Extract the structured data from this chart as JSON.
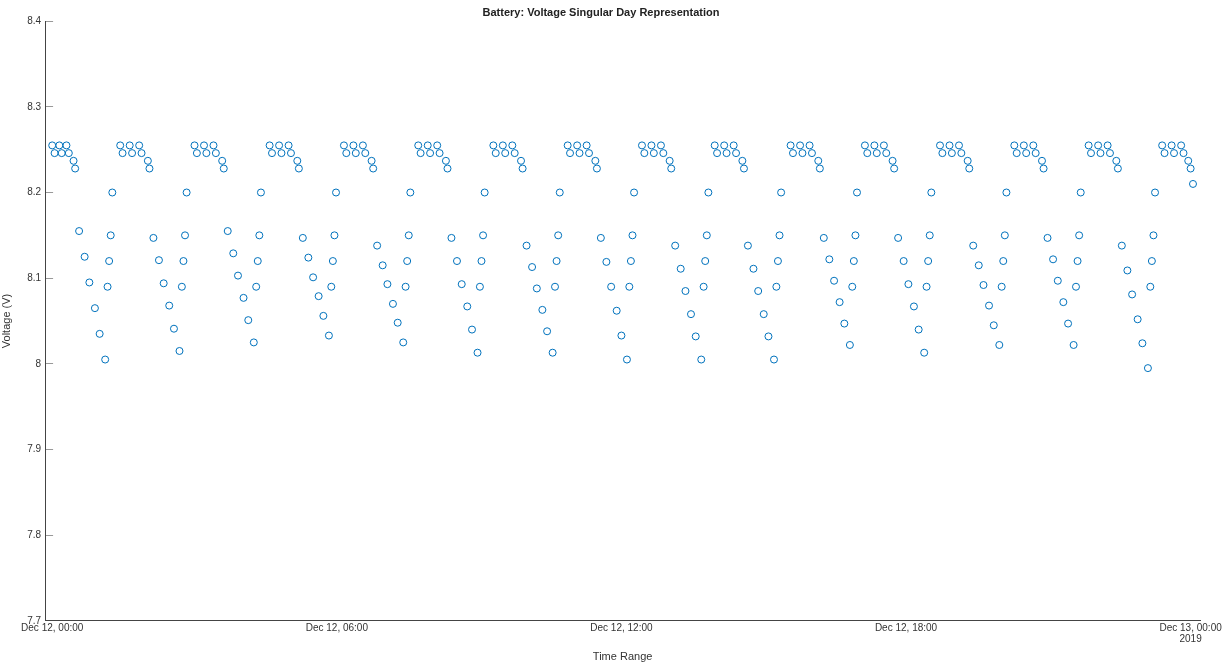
{
  "chart_data": {
    "type": "scatter",
    "title": "Battery: Voltage Singular Day Representation",
    "xlabel": "Time Range",
    "ylabel": "Voltage (V)",
    "color": "#0072bd",
    "marker": "circle",
    "grid": false,
    "xlim": [
      "2019-12-11T23:51",
      "2019-12-13T00:12"
    ],
    "xticks": [
      {
        "value": "2019-12-12T00:00",
        "label": "Dec 12, 00:00"
      },
      {
        "value": "2019-12-12T06:00",
        "label": "Dec 12, 06:00"
      },
      {
        "value": "2019-12-12T12:00",
        "label": "Dec 12, 12:00"
      },
      {
        "value": "2019-12-12T18:00",
        "label": "Dec 12, 18:00"
      },
      {
        "value": "2019-12-13T00:00",
        "label": "Dec 13, 00:00\n2019"
      }
    ],
    "ylim": [
      7.7,
      8.4
    ],
    "yticks": [
      7.7,
      7.8,
      7.9,
      8,
      8.1,
      8.2,
      8.3,
      8.4
    ],
    "x": [
      "2019-12-12T00:00",
      "2019-12-12T00:03",
      "2019-12-12T00:09",
      "2019-12-12T00:12",
      "2019-12-12T00:18",
      "2019-12-12T00:21",
      "2019-12-12T00:27",
      "2019-12-12T00:29",
      "2019-12-12T00:34",
      "2019-12-12T00:41",
      "2019-12-12T00:47",
      "2019-12-12T00:54",
      "2019-12-12T01:00",
      "2019-12-12T01:07",
      "2019-12-12T01:10",
      "2019-12-12T01:12",
      "2019-12-12T01:14",
      "2019-12-12T01:16",
      "2019-12-12T01:26",
      "2019-12-12T01:29",
      "2019-12-12T01:38",
      "2019-12-12T01:41",
      "2019-12-12T01:50",
      "2019-12-12T01:53",
      "2019-12-12T02:01",
      "2019-12-12T02:03",
      "2019-12-12T02:08",
      "2019-12-12T02:15",
      "2019-12-12T02:21",
      "2019-12-12T02:28",
      "2019-12-12T02:34",
      "2019-12-12T02:41",
      "2019-12-12T02:44",
      "2019-12-12T02:46",
      "2019-12-12T02:48",
      "2019-12-12T02:50",
      "2019-12-12T03:00",
      "2019-12-12T03:03",
      "2019-12-12T03:12",
      "2019-12-12T03:15",
      "2019-12-12T03:24",
      "2019-12-12T03:27",
      "2019-12-12T03:35",
      "2019-12-12T03:37",
      "2019-12-12T03:42",
      "2019-12-12T03:49",
      "2019-12-12T03:55",
      "2019-12-12T04:02",
      "2019-12-12T04:08",
      "2019-12-12T04:15",
      "2019-12-12T04:18",
      "2019-12-12T04:20",
      "2019-12-12T04:22",
      "2019-12-12T04:24",
      "2019-12-12T04:35",
      "2019-12-12T04:38",
      "2019-12-12T04:47",
      "2019-12-12T04:50",
      "2019-12-12T04:59",
      "2019-12-12T05:02",
      "2019-12-12T05:10",
      "2019-12-12T05:12",
      "2019-12-12T05:17",
      "2019-12-12T05:24",
      "2019-12-12T05:30",
      "2019-12-12T05:37",
      "2019-12-12T05:43",
      "2019-12-12T05:50",
      "2019-12-12T05:53",
      "2019-12-12T05:55",
      "2019-12-12T05:57",
      "2019-12-12T05:59",
      "2019-12-12T06:09",
      "2019-12-12T06:12",
      "2019-12-12T06:21",
      "2019-12-12T06:24",
      "2019-12-12T06:33",
      "2019-12-12T06:36",
      "2019-12-12T06:44",
      "2019-12-12T06:46",
      "2019-12-12T06:51",
      "2019-12-12T06:58",
      "2019-12-12T07:04",
      "2019-12-12T07:11",
      "2019-12-12T07:17",
      "2019-12-12T07:24",
      "2019-12-12T07:27",
      "2019-12-12T07:29",
      "2019-12-12T07:31",
      "2019-12-12T07:33",
      "2019-12-12T07:43",
      "2019-12-12T07:46",
      "2019-12-12T07:55",
      "2019-12-12T07:58",
      "2019-12-12T08:07",
      "2019-12-12T08:10",
      "2019-12-12T08:18",
      "2019-12-12T08:20",
      "2019-12-12T08:25",
      "2019-12-12T08:32",
      "2019-12-12T08:38",
      "2019-12-12T08:45",
      "2019-12-12T08:51",
      "2019-12-12T08:58",
      "2019-12-12T09:01",
      "2019-12-12T09:03",
      "2019-12-12T09:05",
      "2019-12-12T09:07",
      "2019-12-12T09:18",
      "2019-12-12T09:21",
      "2019-12-12T09:30",
      "2019-12-12T09:33",
      "2019-12-12T09:42",
      "2019-12-12T09:45",
      "2019-12-12T09:53",
      "2019-12-12T09:55",
      "2019-12-12T10:00",
      "2019-12-12T10:07",
      "2019-12-12T10:13",
      "2019-12-12T10:20",
      "2019-12-12T10:26",
      "2019-12-12T10:33",
      "2019-12-12T10:36",
      "2019-12-12T10:38",
      "2019-12-12T10:40",
      "2019-12-12T10:42",
      "2019-12-12T10:52",
      "2019-12-12T10:55",
      "2019-12-12T11:04",
      "2019-12-12T11:07",
      "2019-12-12T11:16",
      "2019-12-12T11:19",
      "2019-12-12T11:27",
      "2019-12-12T11:29",
      "2019-12-12T11:34",
      "2019-12-12T11:41",
      "2019-12-12T11:47",
      "2019-12-12T11:54",
      "2019-12-12T12:00",
      "2019-12-12T12:07",
      "2019-12-12T12:10",
      "2019-12-12T12:12",
      "2019-12-12T12:14",
      "2019-12-12T12:16",
      "2019-12-12T12:26",
      "2019-12-12T12:29",
      "2019-12-12T12:38",
      "2019-12-12T12:41",
      "2019-12-12T12:50",
      "2019-12-12T12:53",
      "2019-12-12T13:01",
      "2019-12-12T13:03",
      "2019-12-12T13:08",
      "2019-12-12T13:15",
      "2019-12-12T13:21",
      "2019-12-12T13:28",
      "2019-12-12T13:34",
      "2019-12-12T13:41",
      "2019-12-12T13:44",
      "2019-12-12T13:46",
      "2019-12-12T13:48",
      "2019-12-12T13:50",
      "2019-12-12T13:58",
      "2019-12-12T14:01",
      "2019-12-12T14:10",
      "2019-12-12T14:13",
      "2019-12-12T14:22",
      "2019-12-12T14:25",
      "2019-12-12T14:33",
      "2019-12-12T14:35",
      "2019-12-12T14:40",
      "2019-12-12T14:47",
      "2019-12-12T14:53",
      "2019-12-12T15:00",
      "2019-12-12T15:06",
      "2019-12-12T15:13",
      "2019-12-12T15:16",
      "2019-12-12T15:18",
      "2019-12-12T15:20",
      "2019-12-12T15:22",
      "2019-12-12T15:34",
      "2019-12-12T15:37",
      "2019-12-12T15:46",
      "2019-12-12T15:49",
      "2019-12-12T15:58",
      "2019-12-12T16:01",
      "2019-12-12T16:09",
      "2019-12-12T16:11",
      "2019-12-12T16:16",
      "2019-12-12T16:23",
      "2019-12-12T16:29",
      "2019-12-12T16:36",
      "2019-12-12T16:42",
      "2019-12-12T16:49",
      "2019-12-12T16:52",
      "2019-12-12T16:54",
      "2019-12-12T16:56",
      "2019-12-12T16:58",
      "2019-12-12T17:08",
      "2019-12-12T17:11",
      "2019-12-12T17:20",
      "2019-12-12T17:23",
      "2019-12-12T17:32",
      "2019-12-12T17:35",
      "2019-12-12T17:43",
      "2019-12-12T17:45",
      "2019-12-12T17:50",
      "2019-12-12T17:57",
      "2019-12-12T18:03",
      "2019-12-12T18:10",
      "2019-12-12T18:16",
      "2019-12-12T18:23",
      "2019-12-12T18:26",
      "2019-12-12T18:28",
      "2019-12-12T18:30",
      "2019-12-12T18:32",
      "2019-12-12T18:43",
      "2019-12-12T18:46",
      "2019-12-12T18:55",
      "2019-12-12T18:58",
      "2019-12-12T19:07",
      "2019-12-12T19:10",
      "2019-12-12T19:18",
      "2019-12-12T19:20",
      "2019-12-12T19:25",
      "2019-12-12T19:32",
      "2019-12-12T19:38",
      "2019-12-12T19:45",
      "2019-12-12T19:51",
      "2019-12-12T19:58",
      "2019-12-12T20:01",
      "2019-12-12T20:03",
      "2019-12-12T20:05",
      "2019-12-12T20:07",
      "2019-12-12T20:17",
      "2019-12-12T20:20",
      "2019-12-12T20:29",
      "2019-12-12T20:32",
      "2019-12-12T20:41",
      "2019-12-12T20:44",
      "2019-12-12T20:52",
      "2019-12-12T20:54",
      "2019-12-12T20:59",
      "2019-12-12T21:06",
      "2019-12-12T21:12",
      "2019-12-12T21:19",
      "2019-12-12T21:25",
      "2019-12-12T21:32",
      "2019-12-12T21:35",
      "2019-12-12T21:37",
      "2019-12-12T21:39",
      "2019-12-12T21:41",
      "2019-12-12T21:51",
      "2019-12-12T21:54",
      "2019-12-12T22:03",
      "2019-12-12T22:06",
      "2019-12-12T22:15",
      "2019-12-12T22:18",
      "2019-12-12T22:26",
      "2019-12-12T22:28",
      "2019-12-12T22:33",
      "2019-12-12T22:40",
      "2019-12-12T22:46",
      "2019-12-12T22:53",
      "2019-12-12T22:59",
      "2019-12-12T23:06",
      "2019-12-12T23:09",
      "2019-12-12T23:11",
      "2019-12-12T23:13",
      "2019-12-12T23:15",
      "2019-12-12T23:24",
      "2019-12-12T23:27",
      "2019-12-12T23:36",
      "2019-12-12T23:39",
      "2019-12-12T23:48",
      "2019-12-12T23:51",
      "2019-12-12T23:57",
      "2019-12-13T00:00",
      "2019-12-13T00:03"
    ],
    "values": [
      8.255,
      8.246,
      8.255,
      8.246,
      8.255,
      8.246,
      8.237,
      8.228,
      8.155,
      8.125,
      8.095,
      8.065,
      8.035,
      8.005,
      8.09,
      8.12,
      8.15,
      8.2,
      8.255,
      8.246,
      8.255,
      8.246,
      8.255,
      8.246,
      8.237,
      8.228,
      8.147,
      8.121,
      8.094,
      8.068,
      8.041,
      8.015,
      8.09,
      8.12,
      8.15,
      8.2,
      8.255,
      8.246,
      8.255,
      8.246,
      8.255,
      8.246,
      8.237,
      8.228,
      8.155,
      8.129,
      8.103,
      8.077,
      8.051,
      8.025,
      8.09,
      8.12,
      8.15,
      8.2,
      8.255,
      8.246,
      8.255,
      8.246,
      8.255,
      8.246,
      8.237,
      8.228,
      8.147,
      8.124,
      8.101,
      8.079,
      8.056,
      8.033,
      8.09,
      8.12,
      8.15,
      8.2,
      8.255,
      8.246,
      8.255,
      8.246,
      8.255,
      8.246,
      8.237,
      8.228,
      8.138,
      8.115,
      8.093,
      8.07,
      8.048,
      8.025,
      8.09,
      8.12,
      8.15,
      8.2,
      8.255,
      8.246,
      8.255,
      8.246,
      8.255,
      8.246,
      8.237,
      8.228,
      8.147,
      8.12,
      8.093,
      8.067,
      8.04,
      8.013,
      8.09,
      8.12,
      8.15,
      8.2,
      8.255,
      8.246,
      8.255,
      8.246,
      8.255,
      8.246,
      8.237,
      8.228,
      8.138,
      8.113,
      8.088,
      8.063,
      8.038,
      8.013,
      8.09,
      8.12,
      8.15,
      8.2,
      8.255,
      8.246,
      8.255,
      8.246,
      8.255,
      8.246,
      8.237,
      8.228,
      8.147,
      8.119,
      8.09,
      8.062,
      8.033,
      8.005,
      8.09,
      8.12,
      8.15,
      8.2,
      8.255,
      8.246,
      8.255,
      8.246,
      8.255,
      8.246,
      8.237,
      8.228,
      8.138,
      8.111,
      8.085,
      8.058,
      8.032,
      8.005,
      8.09,
      8.12,
      8.15,
      8.2,
      8.255,
      8.246,
      8.255,
      8.246,
      8.255,
      8.246,
      8.237,
      8.228,
      8.138,
      8.111,
      8.085,
      8.058,
      8.032,
      8.005,
      8.09,
      8.12,
      8.15,
      8.2,
      8.255,
      8.246,
      8.255,
      8.246,
      8.255,
      8.246,
      8.237,
      8.228,
      8.147,
      8.122,
      8.097,
      8.072,
      8.047,
      8.022,
      8.09,
      8.12,
      8.15,
      8.2,
      8.255,
      8.246,
      8.255,
      8.246,
      8.255,
      8.246,
      8.237,
      8.228,
      8.147,
      8.12,
      8.093,
      8.067,
      8.04,
      8.013,
      8.09,
      8.12,
      8.15,
      8.2,
      8.255,
      8.246,
      8.255,
      8.246,
      8.255,
      8.246,
      8.237,
      8.228,
      8.138,
      8.115,
      8.092,
      8.068,
      8.045,
      8.022,
      8.09,
      8.12,
      8.15,
      8.2,
      8.255,
      8.246,
      8.255,
      8.246,
      8.255,
      8.246,
      8.237,
      8.228,
      8.147,
      8.122,
      8.097,
      8.072,
      8.047,
      8.022,
      8.09,
      8.12,
      8.15,
      8.2,
      8.255,
      8.246,
      8.255,
      8.246,
      8.255,
      8.246,
      8.237,
      8.228,
      8.138,
      8.109,
      8.081,
      8.052,
      8.024,
      7.995,
      8.09,
      8.12,
      8.15,
      8.2,
      8.255,
      8.246,
      8.255,
      8.246,
      8.255,
      8.246,
      8.237,
      8.228,
      8.21
    ]
  }
}
